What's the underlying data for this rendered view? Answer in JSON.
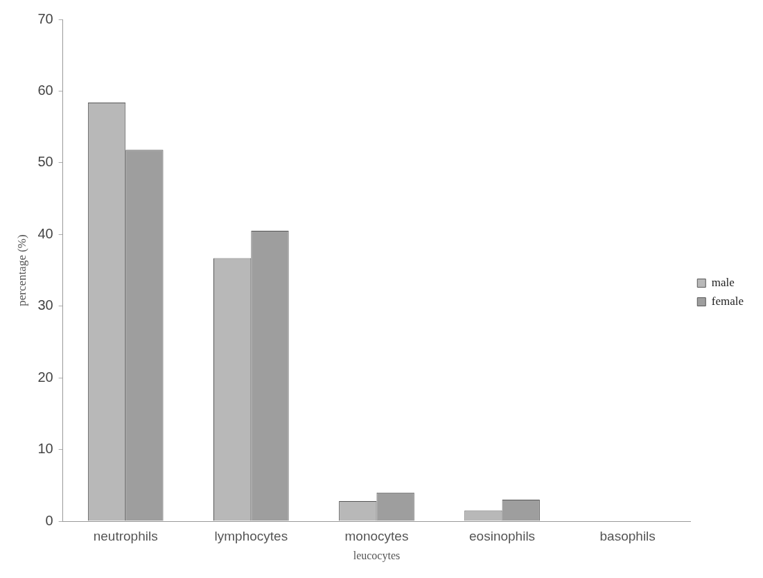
{
  "chart_data": {
    "type": "bar",
    "xlabel": "leucocytes",
    "ylabel": "percentage (%)",
    "categories": [
      "neutrophils",
      "lymphocytes",
      "monocytes",
      "eosinophils",
      "basophils"
    ],
    "series": [
      {
        "name": "male",
        "color": "#b8b8b8",
        "values": [
          58.4,
          36.7,
          2.8,
          1.5,
          0
        ]
      },
      {
        "name": "female",
        "color": "#9e9e9e",
        "values": [
          51.8,
          40.5,
          4.0,
          3.0,
          0
        ]
      }
    ],
    "ylim": [
      0,
      70
    ],
    "yticks": [
      0,
      10,
      20,
      30,
      40,
      50,
      60,
      70
    ],
    "legend": "right"
  }
}
